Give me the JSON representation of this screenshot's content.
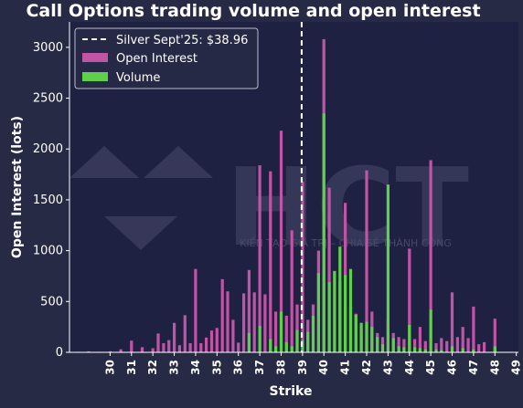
{
  "colors": {
    "background": "#272a45",
    "plot_background": "#1f2142",
    "open_interest": "#c154a5",
    "volume": "#5ed04b",
    "reference_line": "#ffffff",
    "text": "#ffffff",
    "watermark": "#4a4d6e"
  },
  "watermark": {
    "logo_text": "HCT",
    "tagline": "KIẾN TẠO GIÁ TRỊ – CHIA SẺ THÀNH CÔNG"
  },
  "chart_data": {
    "type": "bar",
    "title": "Call Options trading volume and open interest",
    "xlabel": "Strike",
    "ylabel": "Open Interest (lots)",
    "xlim": [
      28.1,
      49.1
    ],
    "ylim": [
      0,
      3250
    ],
    "xticks": [
      30,
      31,
      32,
      33,
      34,
      35,
      36,
      37,
      38,
      39,
      40,
      41,
      42,
      43,
      44,
      45,
      46,
      47,
      48,
      49
    ],
    "yticks": [
      0,
      500,
      1000,
      1500,
      2000,
      2500,
      3000
    ],
    "grid": false,
    "legend_position": "top-left",
    "reference_line": {
      "x": 38.96,
      "label": "Silver Sept'25: $38.96"
    },
    "series": [
      {
        "name": "Open Interest",
        "points": [
          [
            28.5,
            5
          ],
          [
            29.0,
            10
          ],
          [
            29.5,
            5
          ],
          [
            30.0,
            10
          ],
          [
            30.5,
            30
          ],
          [
            31.0,
            115
          ],
          [
            31.5,
            50
          ],
          [
            32.0,
            40
          ],
          [
            32.25,
            185
          ],
          [
            32.5,
            90
          ],
          [
            32.75,
            120
          ],
          [
            33.0,
            290
          ],
          [
            33.25,
            70
          ],
          [
            33.5,
            365
          ],
          [
            33.75,
            90
          ],
          [
            34.0,
            820
          ],
          [
            34.25,
            90
          ],
          [
            34.5,
            145
          ],
          [
            34.75,
            215
          ],
          [
            35.0,
            240
          ],
          [
            35.25,
            720
          ],
          [
            35.5,
            600
          ],
          [
            35.75,
            320
          ],
          [
            36.0,
            95
          ],
          [
            36.25,
            580
          ],
          [
            36.5,
            810
          ],
          [
            36.75,
            590
          ],
          [
            37.0,
            1840
          ],
          [
            37.25,
            570
          ],
          [
            37.5,
            1780
          ],
          [
            37.75,
            400
          ],
          [
            38.0,
            2180
          ],
          [
            38.25,
            360
          ],
          [
            38.5,
            1200
          ],
          [
            38.75,
            470
          ],
          [
            39.0,
            1680
          ],
          [
            39.25,
            320
          ],
          [
            39.5,
            470
          ],
          [
            39.75,
            1000
          ],
          [
            40.0,
            3080
          ],
          [
            40.25,
            1620
          ],
          [
            40.5,
            800
          ],
          [
            40.75,
            700
          ],
          [
            41.0,
            1470
          ],
          [
            41.25,
            450
          ],
          [
            41.5,
            380
          ],
          [
            41.75,
            230
          ],
          [
            42.0,
            1790
          ],
          [
            42.25,
            400
          ],
          [
            42.5,
            190
          ],
          [
            42.75,
            150
          ],
          [
            43.0,
            330
          ],
          [
            43.25,
            190
          ],
          [
            43.5,
            150
          ],
          [
            43.75,
            130
          ],
          [
            44.0,
            1020
          ],
          [
            44.25,
            130
          ],
          [
            44.5,
            250
          ],
          [
            44.75,
            110
          ],
          [
            45.0,
            1890
          ],
          [
            45.25,
            90
          ],
          [
            45.5,
            140
          ],
          [
            45.75,
            110
          ],
          [
            46.0,
            590
          ],
          [
            46.25,
            150
          ],
          [
            46.5,
            250
          ],
          [
            46.75,
            140
          ],
          [
            47.0,
            450
          ],
          [
            47.25,
            80
          ],
          [
            47.5,
            100
          ],
          [
            48.0,
            330
          ]
        ]
      },
      {
        "name": "Volume",
        "points": [
          [
            36.5,
            190
          ],
          [
            37.0,
            260
          ],
          [
            37.5,
            130
          ],
          [
            37.75,
            60
          ],
          [
            38.0,
            400
          ],
          [
            38.25,
            100
          ],
          [
            38.5,
            60
          ],
          [
            38.75,
            220
          ],
          [
            39.0,
            120
          ],
          [
            39.25,
            200
          ],
          [
            39.5,
            360
          ],
          [
            39.75,
            780
          ],
          [
            40.0,
            2350
          ],
          [
            40.25,
            690
          ],
          [
            40.5,
            800
          ],
          [
            40.75,
            1040
          ],
          [
            41.0,
            760
          ],
          [
            41.25,
            820
          ],
          [
            41.5,
            370
          ],
          [
            41.75,
            290
          ],
          [
            42.0,
            300
          ],
          [
            42.25,
            250
          ],
          [
            42.5,
            150
          ],
          [
            42.75,
            80
          ],
          [
            43.0,
            1650
          ],
          [
            43.25,
            140
          ],
          [
            43.5,
            60
          ],
          [
            43.75,
            50
          ],
          [
            44.0,
            270
          ],
          [
            44.25,
            50
          ],
          [
            44.5,
            40
          ],
          [
            44.75,
            30
          ],
          [
            45.0,
            420
          ],
          [
            45.25,
            30
          ],
          [
            45.5,
            20
          ],
          [
            46.0,
            60
          ],
          [
            46.5,
            40
          ],
          [
            47.0,
            30
          ],
          [
            48.0,
            60
          ]
        ]
      }
    ]
  }
}
